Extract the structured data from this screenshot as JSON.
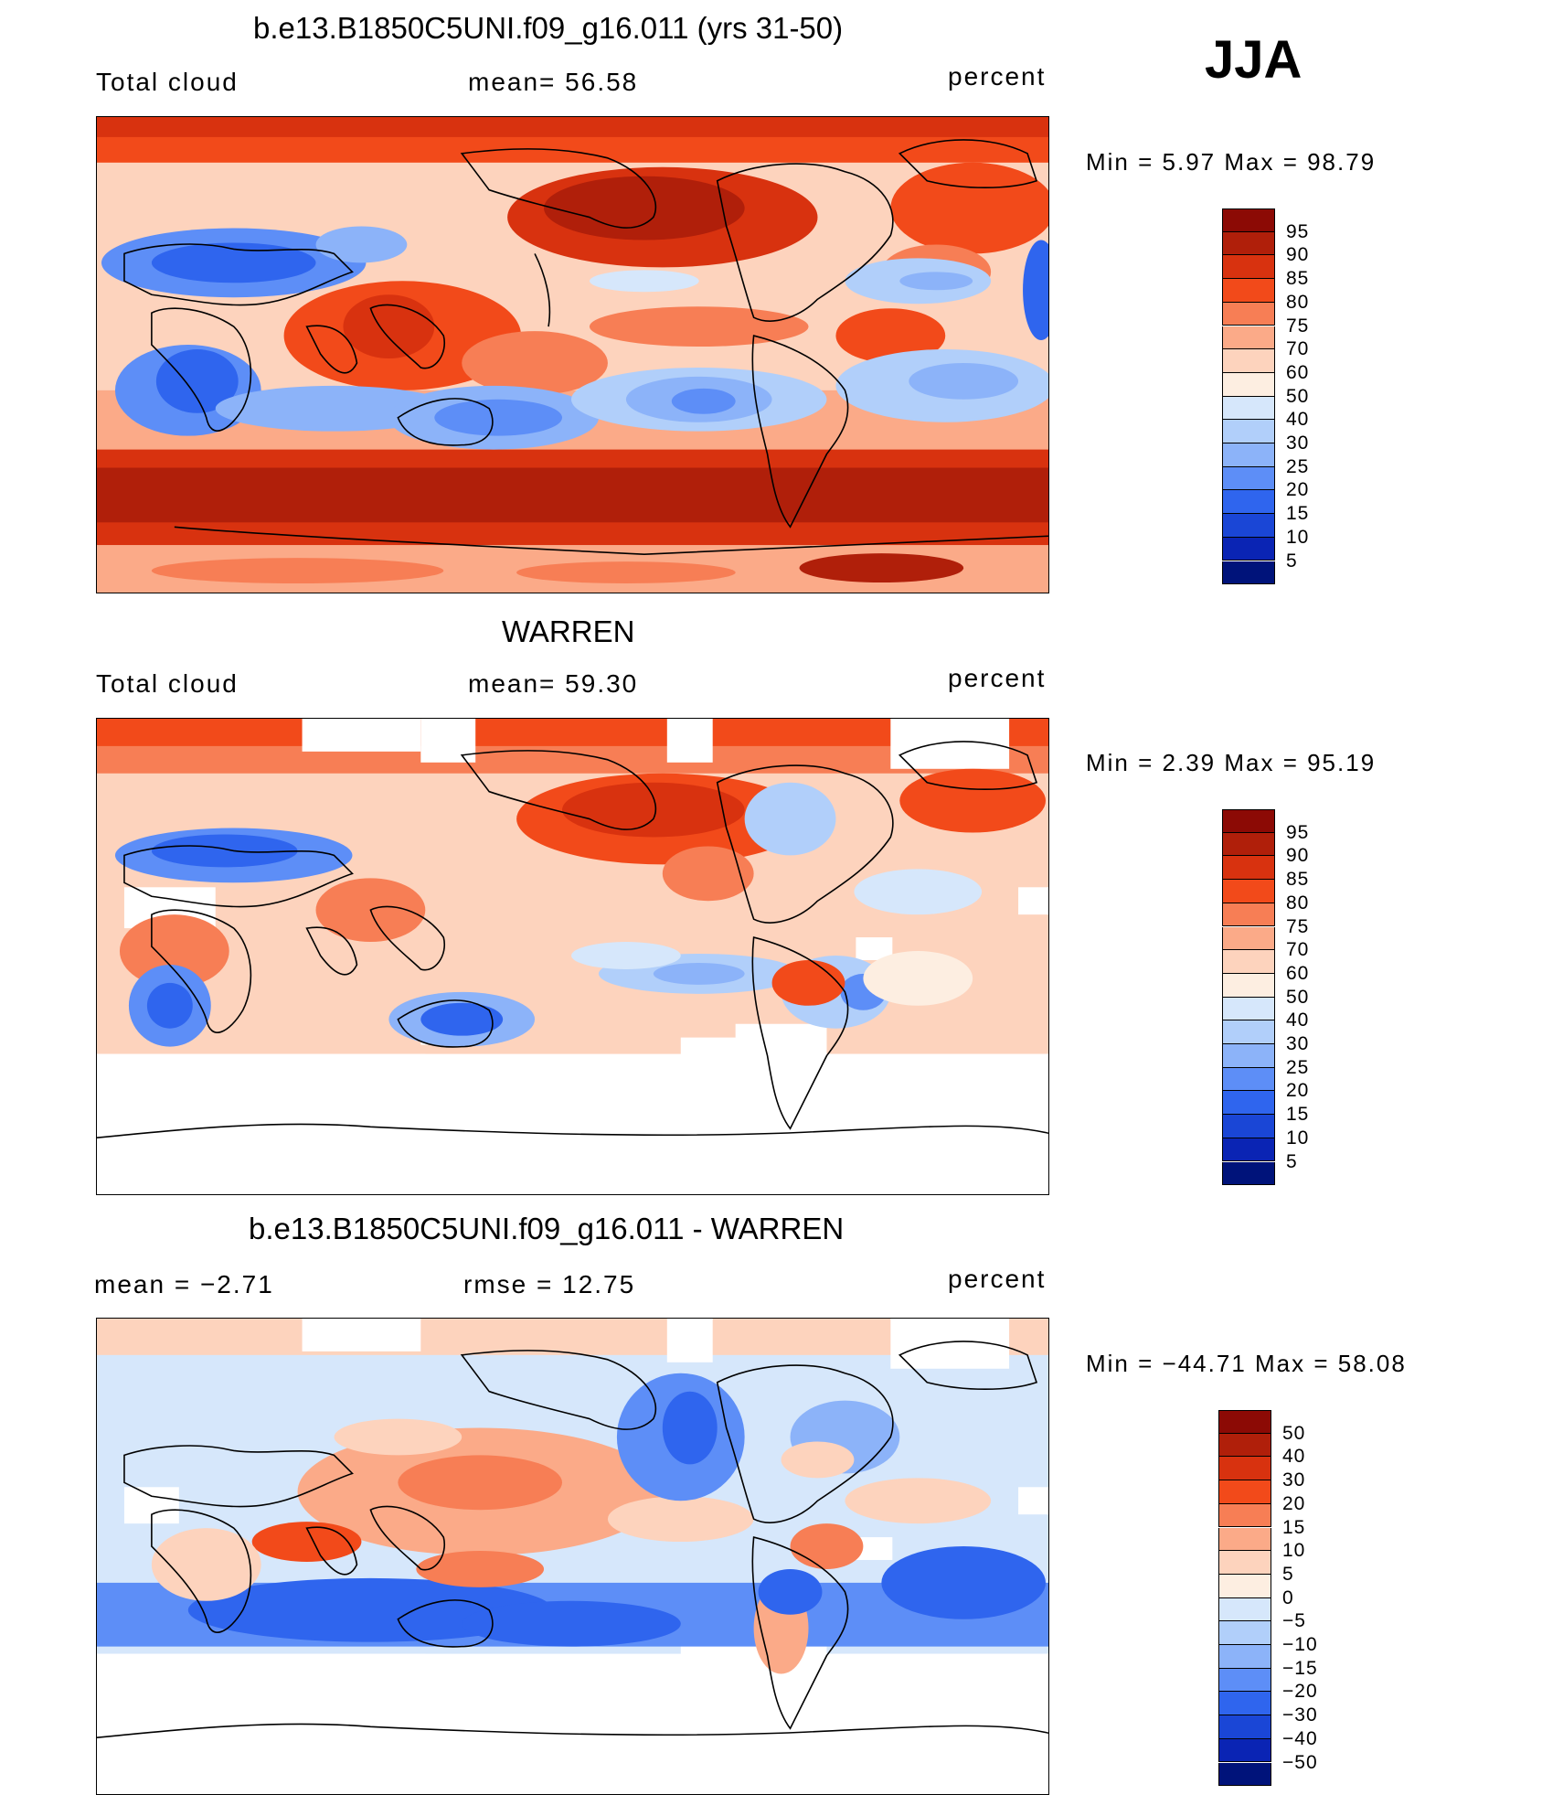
{
  "season": "JJA",
  "panels": [
    {
      "title": "b.e13.B1850C5UNI.f09_g16.011 (yrs 31-50)",
      "left_label": "Total cloud",
      "center_label": "mean=  56.58",
      "units": "percent",
      "minmax": "Min =    5.97 Max =   98.79",
      "legend_labels": [
        "95",
        "90",
        "85",
        "80",
        "75",
        "70",
        "60",
        "50",
        "40",
        "30",
        "25",
        "20",
        "15",
        "10",
        "5"
      ]
    },
    {
      "title": "WARREN",
      "left_label": "Total cloud",
      "center_label": "mean=  59.30",
      "units": "percent",
      "minmax": "Min =    2.39 Max =   95.19",
      "legend_labels": [
        "95",
        "90",
        "85",
        "80",
        "75",
        "70",
        "60",
        "50",
        "40",
        "30",
        "25",
        "20",
        "15",
        "10",
        "5"
      ]
    },
    {
      "title": "b.e13.B1850C5UNI.f09_g16.011 - WARREN",
      "left_label": "mean =   −2.71",
      "center_label": "rmse =   12.75",
      "units": "percent",
      "minmax": "Min = −44.71 Max =   58.08",
      "legend_labels": [
        "50",
        "40",
        "30",
        "20",
        "15",
        "10",
        "5",
        "0",
        "−5",
        "−10",
        "−15",
        "−20",
        "−30",
        "−40",
        "−50"
      ]
    }
  ],
  "colors": {
    "abs_scale": [
      "#8c0a05",
      "#b01f0a",
      "#d8320f",
      "#f24a1a",
      "#f77e55",
      "#fbaa88",
      "#fdd3bd",
      "#fdeee1",
      "#d6e7fb",
      "#b1cffa",
      "#8cb3f9",
      "#5d8ef7",
      "#2f65ee",
      "#1a46d6",
      "#0a24b4",
      "#00137a"
    ],
    "diff_scale": [
      "#8c0a05",
      "#b01f0a",
      "#d8320f",
      "#f24a1a",
      "#f77e55",
      "#fbaa88",
      "#fdd3bd",
      "#fdeee1",
      "#d6e7fb",
      "#b1cffa",
      "#8cb3f9",
      "#5d8ef7",
      "#2f65ee",
      "#1a46d6",
      "#0a24b4",
      "#00137a"
    ]
  }
}
